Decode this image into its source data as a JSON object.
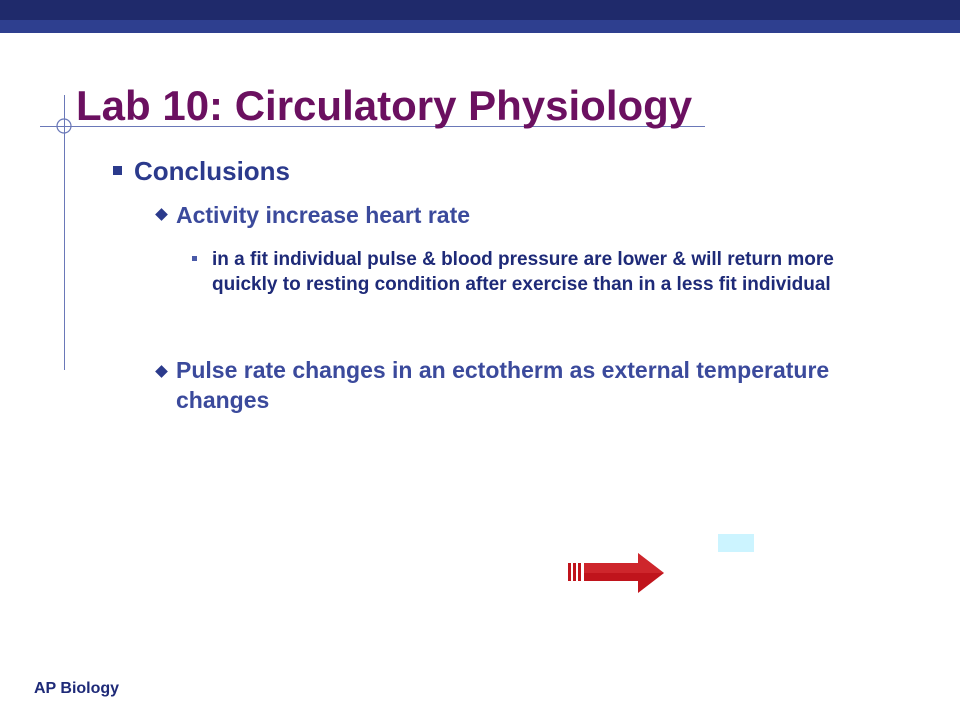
{
  "slide": {
    "title": "Lab 10: Circulatory Physiology",
    "level1": "Conclusions",
    "level2_a": "Activity increase heart rate",
    "level3_a": "in a fit individual pulse & blood pressure are lower & will return more quickly to resting condition after exercise than in a less fit individual",
    "level2_b": "Pulse rate changes in an ectotherm as external temperature changes",
    "footer": "AP Biology"
  },
  "colors": {
    "title": "#6b1060",
    "bullet_text": "#2b3a8c",
    "top_bar": "#1f2a6b",
    "arrow": "#c0141c"
  }
}
